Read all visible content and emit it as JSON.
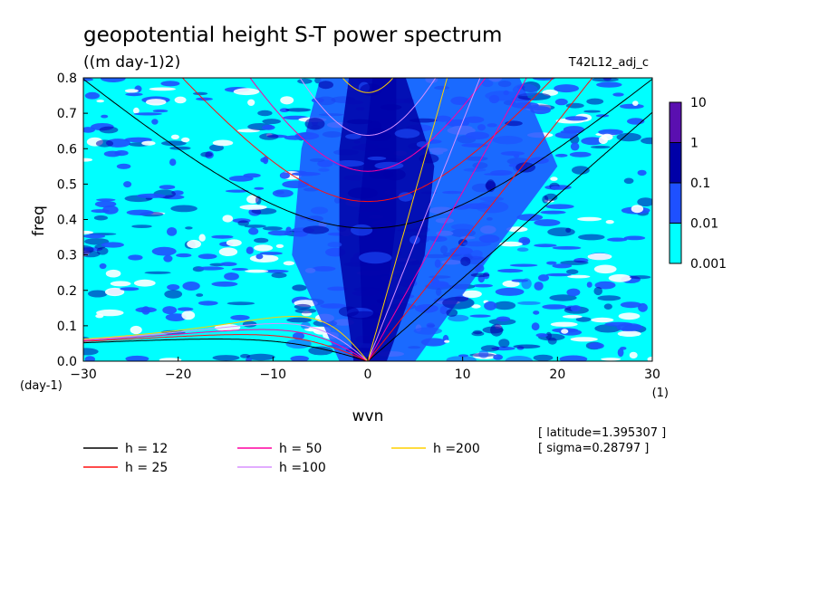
{
  "chart_data": {
    "type": "heatmap",
    "title": "geopotential height S-T power spectrum",
    "units": "((m day-1)2)",
    "run_label": "T42L12_adj_c",
    "xlabel": "wvn",
    "ylabel": "freq",
    "x_unit": "(1)",
    "y_unit": "(day-1)",
    "xlim": [
      -30,
      30
    ],
    "ylim": [
      0,
      0.8
    ],
    "x_ticks": [
      -30,
      -20,
      -10,
      0,
      10,
      20,
      30
    ],
    "x_tick_labels": [
      "−30",
      "−20",
      "−10",
      "0",
      "10",
      "20",
      "30"
    ],
    "y_ticks": [
      0,
      0.1,
      0.2,
      0.3,
      0.4,
      0.5,
      0.6,
      0.7,
      0.8
    ],
    "y_tick_labels": [
      "0.0",
      "0.1",
      "0.2",
      "0.3",
      "0.4",
      "0.5",
      "0.6",
      "0.7",
      "0.8"
    ],
    "colorbar": {
      "labels": [
        "10",
        "1",
        "0.1",
        "0.01",
        "0.001"
      ],
      "colors": [
        "#5a0fb0",
        "#0000a8",
        "#1e50ff",
        "#00ffff"
      ],
      "background": "#ffffff"
    },
    "series": [
      {
        "name": "h = 12",
        "h": 12,
        "color": "#000000"
      },
      {
        "name": "h = 25",
        "h": 25,
        "color": "#ff1010"
      },
      {
        "name": "h = 50",
        "h": 50,
        "color": "#ff00a0"
      },
      {
        "name": "h =100",
        "h": 100,
        "color": "#d890ff"
      },
      {
        "name": "h =200",
        "h": 200,
        "color": "#ffd000"
      }
    ],
    "annotations": [
      "[ latitude=1.395307 ]",
      "[ sigma=0.28797 ]"
    ]
  }
}
